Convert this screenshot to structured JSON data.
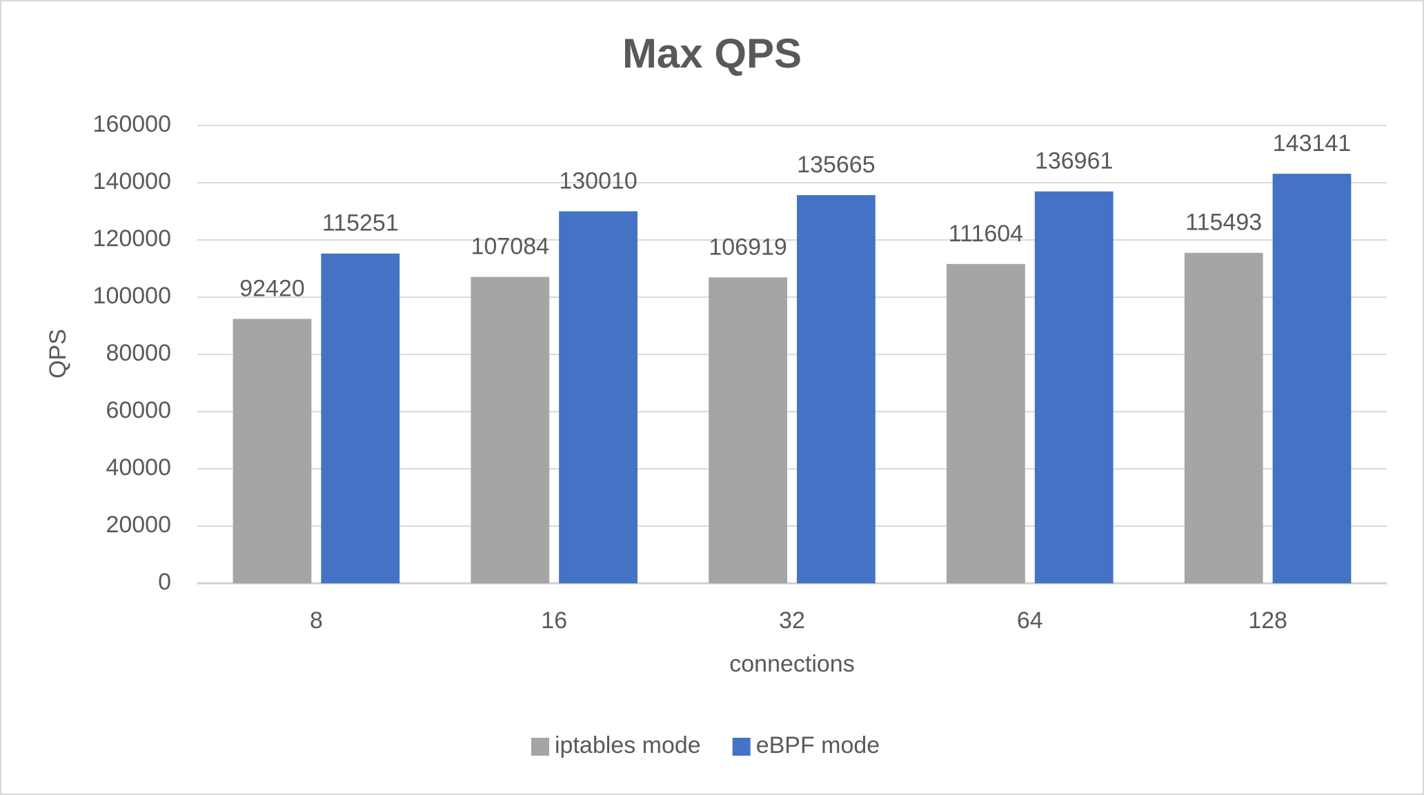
{
  "chart_data": {
    "type": "bar",
    "title": "Max QPS",
    "x_label": "connections",
    "y_label": "QPS",
    "categories": [
      "8",
      "16",
      "32",
      "64",
      "128"
    ],
    "series": [
      {
        "name": "iptables mode",
        "color": "#a5a5a5",
        "values": [
          92420,
          107084,
          106919,
          111604,
          115493
        ]
      },
      {
        "name": "eBPF mode",
        "color": "#4472c4",
        "values": [
          115251,
          130010,
          135665,
          136961,
          143141
        ]
      }
    ],
    "ylim": [
      0,
      160000
    ],
    "yticks": [
      0,
      20000,
      40000,
      60000,
      80000,
      100000,
      120000,
      140000,
      160000
    ],
    "grid": true,
    "legend": "bottom"
  }
}
